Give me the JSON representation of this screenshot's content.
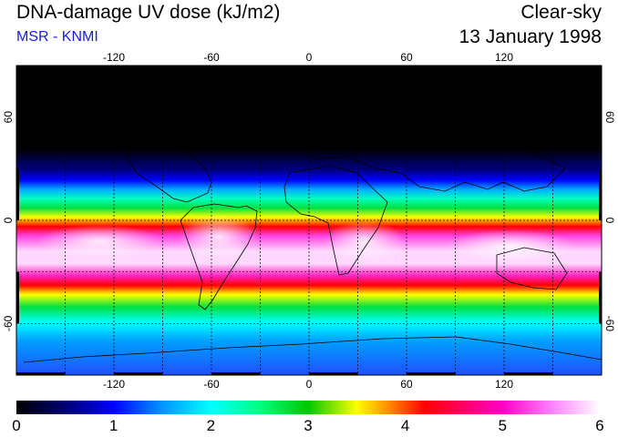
{
  "header": {
    "title": "DNA-damage UV dose (kJ/m2)",
    "credit": "MSR - KNMI",
    "sky_condition": "Clear-sky",
    "date": "13 January 1998"
  },
  "map": {
    "longitude_ticks": [
      "-120",
      "-60",
      "0",
      "60",
      "120"
    ],
    "latitude_ticks": [
      "60",
      "0",
      "-60"
    ],
    "gridline_longitudes": [
      -150,
      -120,
      -90,
      -60,
      -30,
      0,
      30,
      60,
      90,
      120,
      150
    ],
    "gridline_latitudes": [
      60,
      30,
      0,
      -30,
      -60
    ],
    "lon_range": [
      -180,
      180
    ],
    "lat_range": [
      -90,
      90
    ]
  },
  "colorbar": {
    "labels": [
      "0",
      "1",
      "2",
      "3",
      "4",
      "5",
      "6"
    ],
    "range": [
      0,
      6
    ],
    "stops": [
      {
        "value": 0,
        "color": "#000000"
      },
      {
        "value": 0.6,
        "color": "#00008c"
      },
      {
        "value": 1.0,
        "color": "#0000ff"
      },
      {
        "value": 1.5,
        "color": "#0096ff"
      },
      {
        "value": 2.0,
        "color": "#00ffff"
      },
      {
        "value": 2.5,
        "color": "#00ff80"
      },
      {
        "value": 3.0,
        "color": "#00c800"
      },
      {
        "value": 3.5,
        "color": "#ffff00"
      },
      {
        "value": 3.8,
        "color": "#ff9600"
      },
      {
        "value": 4.2,
        "color": "#ff0000"
      },
      {
        "value": 5.0,
        "color": "#ff00c8"
      },
      {
        "value": 5.5,
        "color": "#ff80ff"
      },
      {
        "value": 6.0,
        "color": "#ffffff"
      }
    ]
  }
}
